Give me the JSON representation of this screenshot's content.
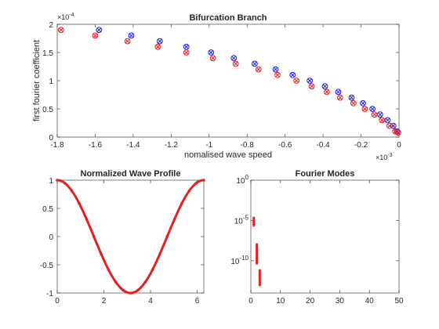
{
  "chart_data": [
    {
      "id": "branch",
      "type": "scatter",
      "title": "Bifurcation Branch",
      "xlabel": "nomalised wave speed",
      "ylabel": "first fourier coefficient",
      "x_multiplier": "×10^{-3}",
      "y_multiplier": "×10^{-4}",
      "xlim": [
        -1.8,
        0
      ],
      "ylim": [
        0,
        2
      ],
      "xticks": [
        -1.8,
        -1.6,
        -1.4,
        -1.2,
        -1,
        -0.8,
        -0.6,
        -0.4,
        -0.2,
        0
      ],
      "yticks": [
        0,
        0.5,
        1,
        1.5,
        2
      ],
      "xtick_labels": [
        "-1.8",
        "-1.6",
        "-1.4",
        "-1.2",
        "-1",
        "-0.8",
        "-0.6",
        "-0.4",
        "-0.2",
        "0"
      ],
      "ytick_labels": [
        "0",
        "0.5",
        "1",
        "1.5",
        "2"
      ],
      "grid": false,
      "marker": "circled-x",
      "series": [
        {
          "color": "#1f1fe6",
          "x": [
            -1.58,
            -1.41,
            -1.26,
            -1.12,
            -0.99,
            -0.87,
            -0.76,
            -0.65,
            -0.56,
            -0.47,
            -0.39,
            -0.32,
            -0.25,
            -0.19,
            -0.14,
            -0.1,
            -0.06,
            -0.03,
            -0.01
          ],
          "y": [
            1.9,
            1.8,
            1.7,
            1.6,
            1.5,
            1.4,
            1.3,
            1.2,
            1.1,
            1.0,
            0.9,
            0.8,
            0.7,
            0.6,
            0.5,
            0.4,
            0.3,
            0.2,
            0.1
          ]
        },
        {
          "color": "#e61f1f",
          "x": [
            -1.78,
            -1.6,
            -1.43,
            -1.27,
            -1.12,
            -0.98,
            -0.86,
            -0.74,
            -0.64,
            -0.54,
            -0.46,
            -0.38,
            -0.31,
            -0.24,
            -0.18,
            -0.13,
            -0.09,
            -0.05,
            -0.02,
            -0.004
          ],
          "y": [
            1.9,
            1.8,
            1.7,
            1.6,
            1.5,
            1.4,
            1.3,
            1.2,
            1.1,
            1.0,
            0.9,
            0.8,
            0.7,
            0.6,
            0.5,
            0.4,
            0.3,
            0.2,
            0.1,
            0.08
          ]
        }
      ]
    },
    {
      "id": "profile",
      "type": "line",
      "title": "Normalized Wave Profile",
      "xlabel": "",
      "ylabel": "",
      "function": "cos(x)",
      "xlim": [
        0,
        6.2832
      ],
      "ylim": [
        -1,
        1
      ],
      "xticks": [
        0,
        2,
        4,
        6
      ],
      "yticks": [
        -1,
        -0.5,
        0,
        0.5,
        1
      ],
      "xtick_labels": [
        "0",
        "2",
        "4",
        "6"
      ],
      "ytick_labels": [
        "-1",
        "-0.5",
        "0",
        "0.5",
        "1"
      ],
      "grid": false,
      "line_color": "#e61f1f",
      "x": [
        0,
        0.3142,
        0.6283,
        0.9425,
        1.2566,
        1.5708,
        1.885,
        2.1991,
        2.5133,
        2.8274,
        3.1416,
        3.4558,
        3.7699,
        4.0841,
        4.3982,
        4.7124,
        5.0265,
        5.3407,
        5.6549,
        5.969,
        6.2832
      ],
      "y": [
        1,
        0.951,
        0.809,
        0.588,
        0.309,
        0,
        -0.309,
        -0.588,
        -0.809,
        -0.951,
        -1,
        -0.951,
        -0.809,
        -0.588,
        -0.309,
        0,
        0.309,
        0.588,
        0.809,
        0.951,
        1
      ]
    },
    {
      "id": "modes",
      "type": "scatter",
      "title": "Fourier Modes",
      "xlabel": "",
      "ylabel": "",
      "yscale": "log",
      "xlim": [
        0,
        50
      ],
      "ylim": [
        1e-14,
        1
      ],
      "xticks": [
        0,
        10,
        20,
        30,
        40,
        50
      ],
      "xtick_labels": [
        "0",
        "10",
        "20",
        "30",
        "40",
        "50"
      ],
      "yticks": [
        1,
        1e-05,
        1e-10
      ],
      "ytick_labels": [
        {
          "base": "10",
          "exp": "0"
        },
        {
          "base": "10",
          "exp": "-5"
        },
        {
          "base": "10",
          "exp": "-10"
        }
      ],
      "grid": false,
      "marker_color": "#e61f1f",
      "marker": "dot",
      "x": [
        1,
        1,
        1,
        1,
        1,
        1,
        1,
        1,
        1,
        2,
        2,
        2,
        2,
        2,
        2,
        2,
        2,
        2,
        2,
        2,
        2,
        2,
        3,
        3,
        3,
        3,
        3,
        3,
        3,
        3,
        3,
        3,
        3,
        3
      ],
      "y": [
        2e-05,
        1.5e-05,
        1e-05,
        8e-06,
        6e-06,
        5e-06,
        4e-06,
        3e-06,
        2.5e-06,
        1e-08,
        7e-09,
        5e-09,
        3e-09,
        2e-09,
        1e-09,
        7e-10,
        5e-10,
        3e-10,
        2e-10,
        1.2e-10,
        7e-11,
        5e-11,
        6e-12,
        4e-12,
        3e-12,
        2e-12,
        1.5e-12,
        1e-12,
        7e-13,
        5e-13,
        3e-13,
        2e-13,
        1.5e-13,
        1e-13
      ]
    }
  ]
}
